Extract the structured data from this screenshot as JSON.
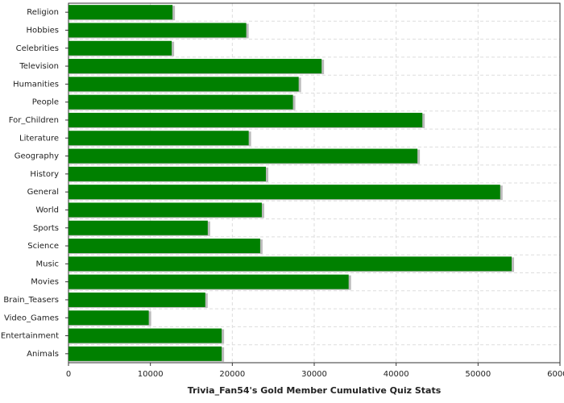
{
  "chart_data": {
    "type": "barh",
    "xlabel": "Trivia_Fan54's Gold Member Cumulative Quiz Stats",
    "categories": [
      "Religion",
      "Hobbies",
      "Celebrities",
      "Television",
      "Humanities",
      "People",
      "For_Children",
      "Literature",
      "Geography",
      "History",
      "General",
      "World",
      "Sports",
      "Science",
      "Music",
      "Movies",
      "Brain_Teasers",
      "Video_Games",
      "Entertainment",
      "Animals"
    ],
    "values": [
      12700,
      21700,
      12600,
      30900,
      28100,
      27400,
      43200,
      22000,
      42600,
      24100,
      52700,
      23600,
      17000,
      23400,
      54100,
      34200,
      16700,
      9800,
      18700,
      18700
    ],
    "color": "#008000",
    "xlim": [
      0,
      60000
    ],
    "xticks": [
      0,
      10000,
      20000,
      30000,
      40000,
      50000,
      60000
    ],
    "grid": true
  }
}
